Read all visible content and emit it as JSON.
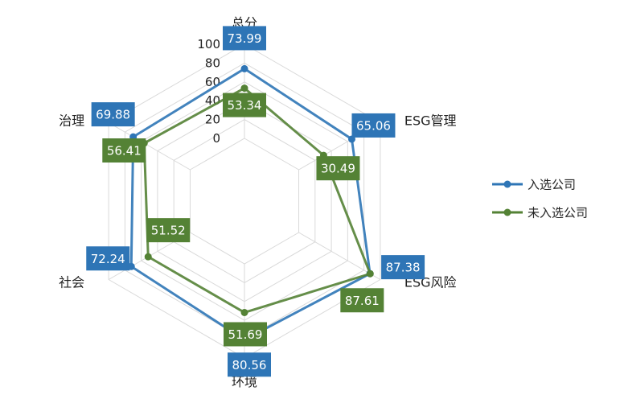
{
  "chart_data": {
    "type": "radar",
    "axes": [
      "总分",
      "ESG管理",
      "ESG风险",
      "环境",
      "社会",
      "治理"
    ],
    "ticks": [
      "0",
      "20",
      "40",
      "60",
      "80",
      "100"
    ],
    "rlim": [
      0,
      100
    ],
    "grid": true,
    "legend_position": "right",
    "series": [
      {
        "name": "入选公司",
        "color": "#2e75b6",
        "label_bg": "#2e75b6",
        "values": [
          73.99,
          65.06,
          87.38,
          80.56,
          72.24,
          69.88
        ]
      },
      {
        "name": "未入选公司",
        "color": "#548235",
        "label_bg": "#548235",
        "values": [
          53.34,
          30.49,
          87.61,
          51.69,
          51.52,
          56.41
        ]
      }
    ]
  }
}
